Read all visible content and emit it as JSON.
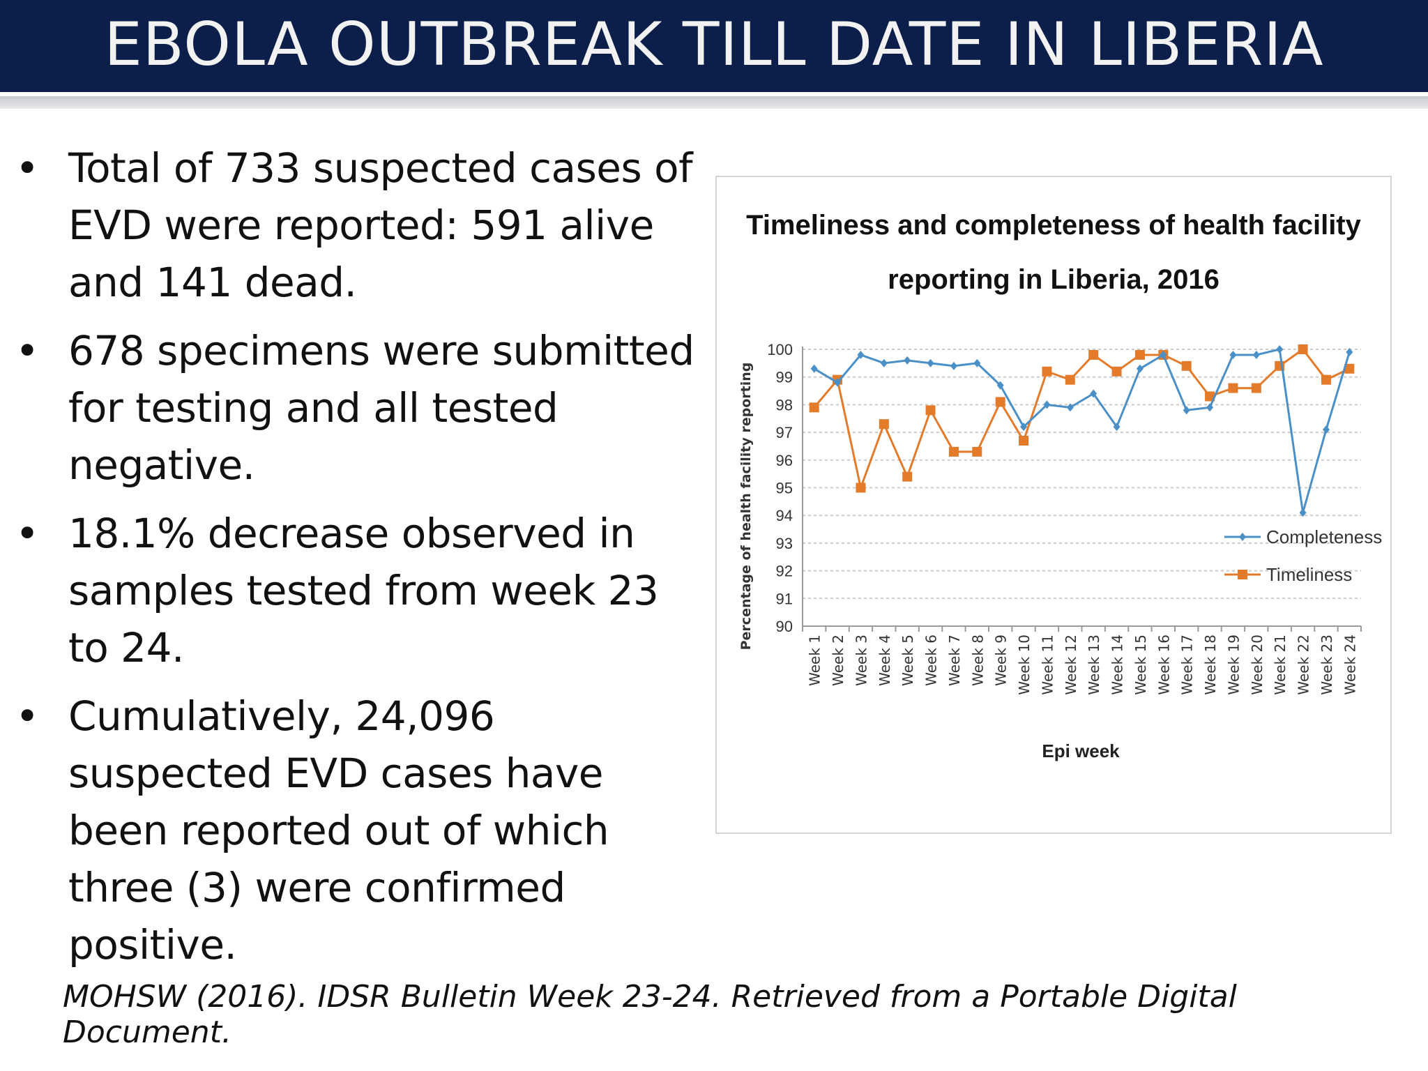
{
  "slide": {
    "title": "EBOLA OUTBREAK TILL DATE IN LIBERIA",
    "colors": {
      "title_bar": "#0c1f4a",
      "completeness": "#4a8fc6",
      "timeliness": "#e37b2b"
    },
    "bullets": [
      {
        "text": "Total of 733 suspected cases of EVD were reported: 591 alive and 141 dead."
      },
      {
        "text": "678 specimens were submitted for testing and all tested negative."
      },
      {
        "text": "18.1% decrease observed in samples tested from week 23 to 24."
      },
      {
        "text": "Cumulatively, 24,096 suspected EVD cases have been reported out of which three (3) were confirmed positive."
      }
    ],
    "bullet_symbol": "•",
    "citation": "MOHSW (2016). IDSR Bulletin Week 23-24. Retrieved from a Portable Digital Document."
  },
  "chart_data": {
    "type": "line",
    "title": "Timeliness and completeness of health facility reporting in Liberia, 2016",
    "title_lines": [
      "Timeliness and completeness of health facility",
      "reporting in Liberia, 2016"
    ],
    "xlabel": "Epi week",
    "ylabel": "Percentage of health facility reporting",
    "ylim": [
      90,
      100
    ],
    "yticks": [
      90,
      91,
      92,
      93,
      94,
      95,
      96,
      97,
      98,
      99,
      100
    ],
    "grid": true,
    "legend": "right",
    "categories": [
      "Week 1",
      "Week 2",
      "Week 3",
      "Week 4",
      "Week 5",
      "Week 6",
      "Week 7",
      "Week 8",
      "Week 9",
      "Week 10",
      "Week 11",
      "Week 12",
      "Week 13",
      "Week 14",
      "Week 15",
      "Week 16",
      "Week 17",
      "Week 18",
      "Week 19",
      "Week 20",
      "Week 21",
      "Week 22",
      "Week 23",
      "Week 24"
    ],
    "series": [
      {
        "name": "Completeness",
        "color": "#4a8fc6",
        "marker": "diamond",
        "values": [
          99.3,
          98.8,
          99.8,
          99.5,
          99.6,
          99.5,
          99.4,
          99.5,
          98.7,
          97.2,
          98.0,
          97.9,
          98.4,
          97.2,
          99.3,
          99.8,
          97.8,
          97.9,
          99.8,
          99.8,
          100.0,
          94.1,
          97.1,
          99.9
        ]
      },
      {
        "name": "Timeliness",
        "color": "#e37b2b",
        "marker": "square",
        "values": [
          97.9,
          98.9,
          95.0,
          97.3,
          95.4,
          97.8,
          96.3,
          96.3,
          98.1,
          96.7,
          99.2,
          98.9,
          99.8,
          99.2,
          99.8,
          99.8,
          99.4,
          98.3,
          98.6,
          98.6,
          99.4,
          100.0,
          98.9,
          99.3
        ]
      }
    ]
  }
}
